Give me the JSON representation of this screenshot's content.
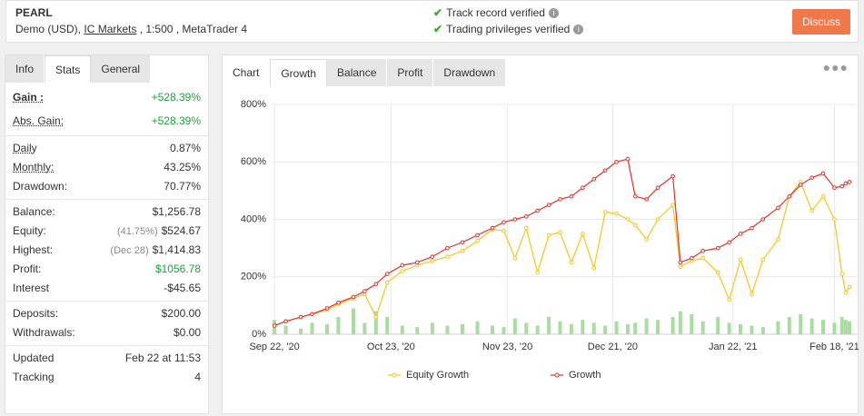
{
  "header": {
    "name": "PEARL",
    "account_prefix": "Demo (USD),",
    "broker": "IC Markets",
    "account_suffix": ", 1:500 , MetaTrader 4",
    "verifications": [
      "Track record verified",
      "Trading privileges verified"
    ],
    "button": "Discuss"
  },
  "stats": {
    "tabs": [
      "Info",
      "Stats",
      "General"
    ],
    "rows": [
      {
        "label": "Gain :",
        "value": "+528.39%"
      },
      {
        "label": "Abs. Gain:",
        "value": "+528.39%"
      },
      {
        "label": "Daily",
        "value": "0.87%"
      },
      {
        "label": "Monthly:",
        "value": "43.25%"
      },
      {
        "label": "Drawdown:",
        "value": "70.77%"
      },
      {
        "label": "Balance:",
        "value": "$1,256.78"
      },
      {
        "label": "Equity:",
        "note": "(41.75%)",
        "value": "$524.67"
      },
      {
        "label": "Highest:",
        "note": "(Dec 28)",
        "value": "$1,414.83"
      },
      {
        "label": "Profit:",
        "value": "$1056.78"
      },
      {
        "label": "Interest",
        "value": "-$45.65"
      },
      {
        "label": "Deposits:",
        "value": "$200.00"
      },
      {
        "label": "Withdrawals:",
        "value": "$0.00"
      },
      {
        "label": "Updated",
        "value": "Feb 22 at 11:53"
      },
      {
        "label": "Tracking",
        "value": "4"
      }
    ]
  },
  "chart_panel": {
    "tabs": [
      "Chart",
      "Growth",
      "Balance",
      "Profit",
      "Drawdown"
    ]
  },
  "chart_data": {
    "type": "line",
    "x": [
      "2020-09-22",
      "2020-09-25",
      "2020-09-29",
      "2020-10-02",
      "2020-10-06",
      "2020-10-09",
      "2020-10-13",
      "2020-10-16",
      "2020-10-19",
      "2020-10-22",
      "2020-10-26",
      "2020-10-30",
      "2020-11-03",
      "2020-11-07",
      "2020-11-11",
      "2020-11-15",
      "2020-11-19",
      "2020-11-22",
      "2020-11-25",
      "2020-11-28",
      "2020-12-01",
      "2020-12-04",
      "2020-12-07",
      "2020-12-10",
      "2020-12-13",
      "2020-12-16",
      "2020-12-19",
      "2020-12-22",
      "2020-12-25",
      "2020-12-27",
      "2020-12-30",
      "2021-01-02",
      "2021-01-06",
      "2021-01-08",
      "2021-01-11",
      "2021-01-14",
      "2021-01-18",
      "2021-01-21",
      "2021-01-24",
      "2021-01-27",
      "2021-01-30",
      "2021-02-03",
      "2021-02-06",
      "2021-02-09",
      "2021-02-12",
      "2021-02-15",
      "2021-02-18",
      "2021-02-20",
      "2021-02-21",
      "2021-02-22"
    ],
    "series": [
      {
        "name": "Equity Growth",
        "color": "#f5c518",
        "values": [
          30,
          45,
          60,
          70,
          85,
          105,
          125,
          140,
          60,
          180,
          220,
          240,
          255,
          270,
          290,
          325,
          365,
          360,
          265,
          370,
          215,
          345,
          355,
          250,
          350,
          230,
          425,
          420,
          400,
          380,
          330,
          400,
          450,
          235,
          255,
          265,
          215,
          120,
          260,
          140,
          260,
          330,
          480,
          530,
          430,
          480,
          400,
          210,
          145,
          165
        ]
      },
      {
        "name": "Growth",
        "color": "#e0312d",
        "values": [
          30,
          45,
          60,
          70,
          90,
          110,
          130,
          150,
          175,
          210,
          240,
          250,
          270,
          300,
          320,
          345,
          370,
          390,
          400,
          410,
          430,
          450,
          470,
          480,
          510,
          540,
          570,
          600,
          610,
          480,
          470,
          510,
          550,
          250,
          265,
          290,
          300,
          320,
          350,
          370,
          400,
          440,
          480,
          520,
          545,
          560,
          510,
          515,
          525,
          530
        ]
      }
    ],
    "bars": {
      "color": "#a8dca0",
      "values": [
        50,
        30,
        20,
        40,
        35,
        60,
        90,
        40,
        80,
        60,
        30,
        25,
        40,
        30,
        35,
        45,
        30,
        25,
        55,
        40,
        30,
        60,
        45,
        35,
        50,
        40,
        30,
        45,
        35,
        40,
        55,
        50,
        60,
        80,
        70,
        45,
        60,
        40,
        35,
        30,
        25,
        45,
        60,
        70,
        55,
        50,
        40,
        60,
        50,
        45
      ]
    },
    "xlim": [
      "2020-09-21",
      "2021-02-22"
    ],
    "xticks": [
      {
        "value": "2020-09-22",
        "label": "Sep 22, '20"
      },
      {
        "value": "2020-10-23",
        "label": "Oct 23, '20"
      },
      {
        "value": "2020-11-23",
        "label": "Nov 23, '20"
      },
      {
        "value": "2020-12-21",
        "label": "Dec 21, '20"
      },
      {
        "value": "2021-01-22",
        "label": "Jan 22, '21"
      },
      {
        "value": "2021-02-18",
        "label": "Feb 18, '21"
      }
    ],
    "ylim": [
      0,
      800
    ],
    "yticks": [
      {
        "value": 0,
        "label": "0%"
      },
      {
        "value": 200,
        "label": "200%"
      },
      {
        "value": 400,
        "label": "400%"
      },
      {
        "value": 600,
        "label": "600%"
      },
      {
        "value": 800,
        "label": "800%"
      }
    ],
    "grid": true
  }
}
